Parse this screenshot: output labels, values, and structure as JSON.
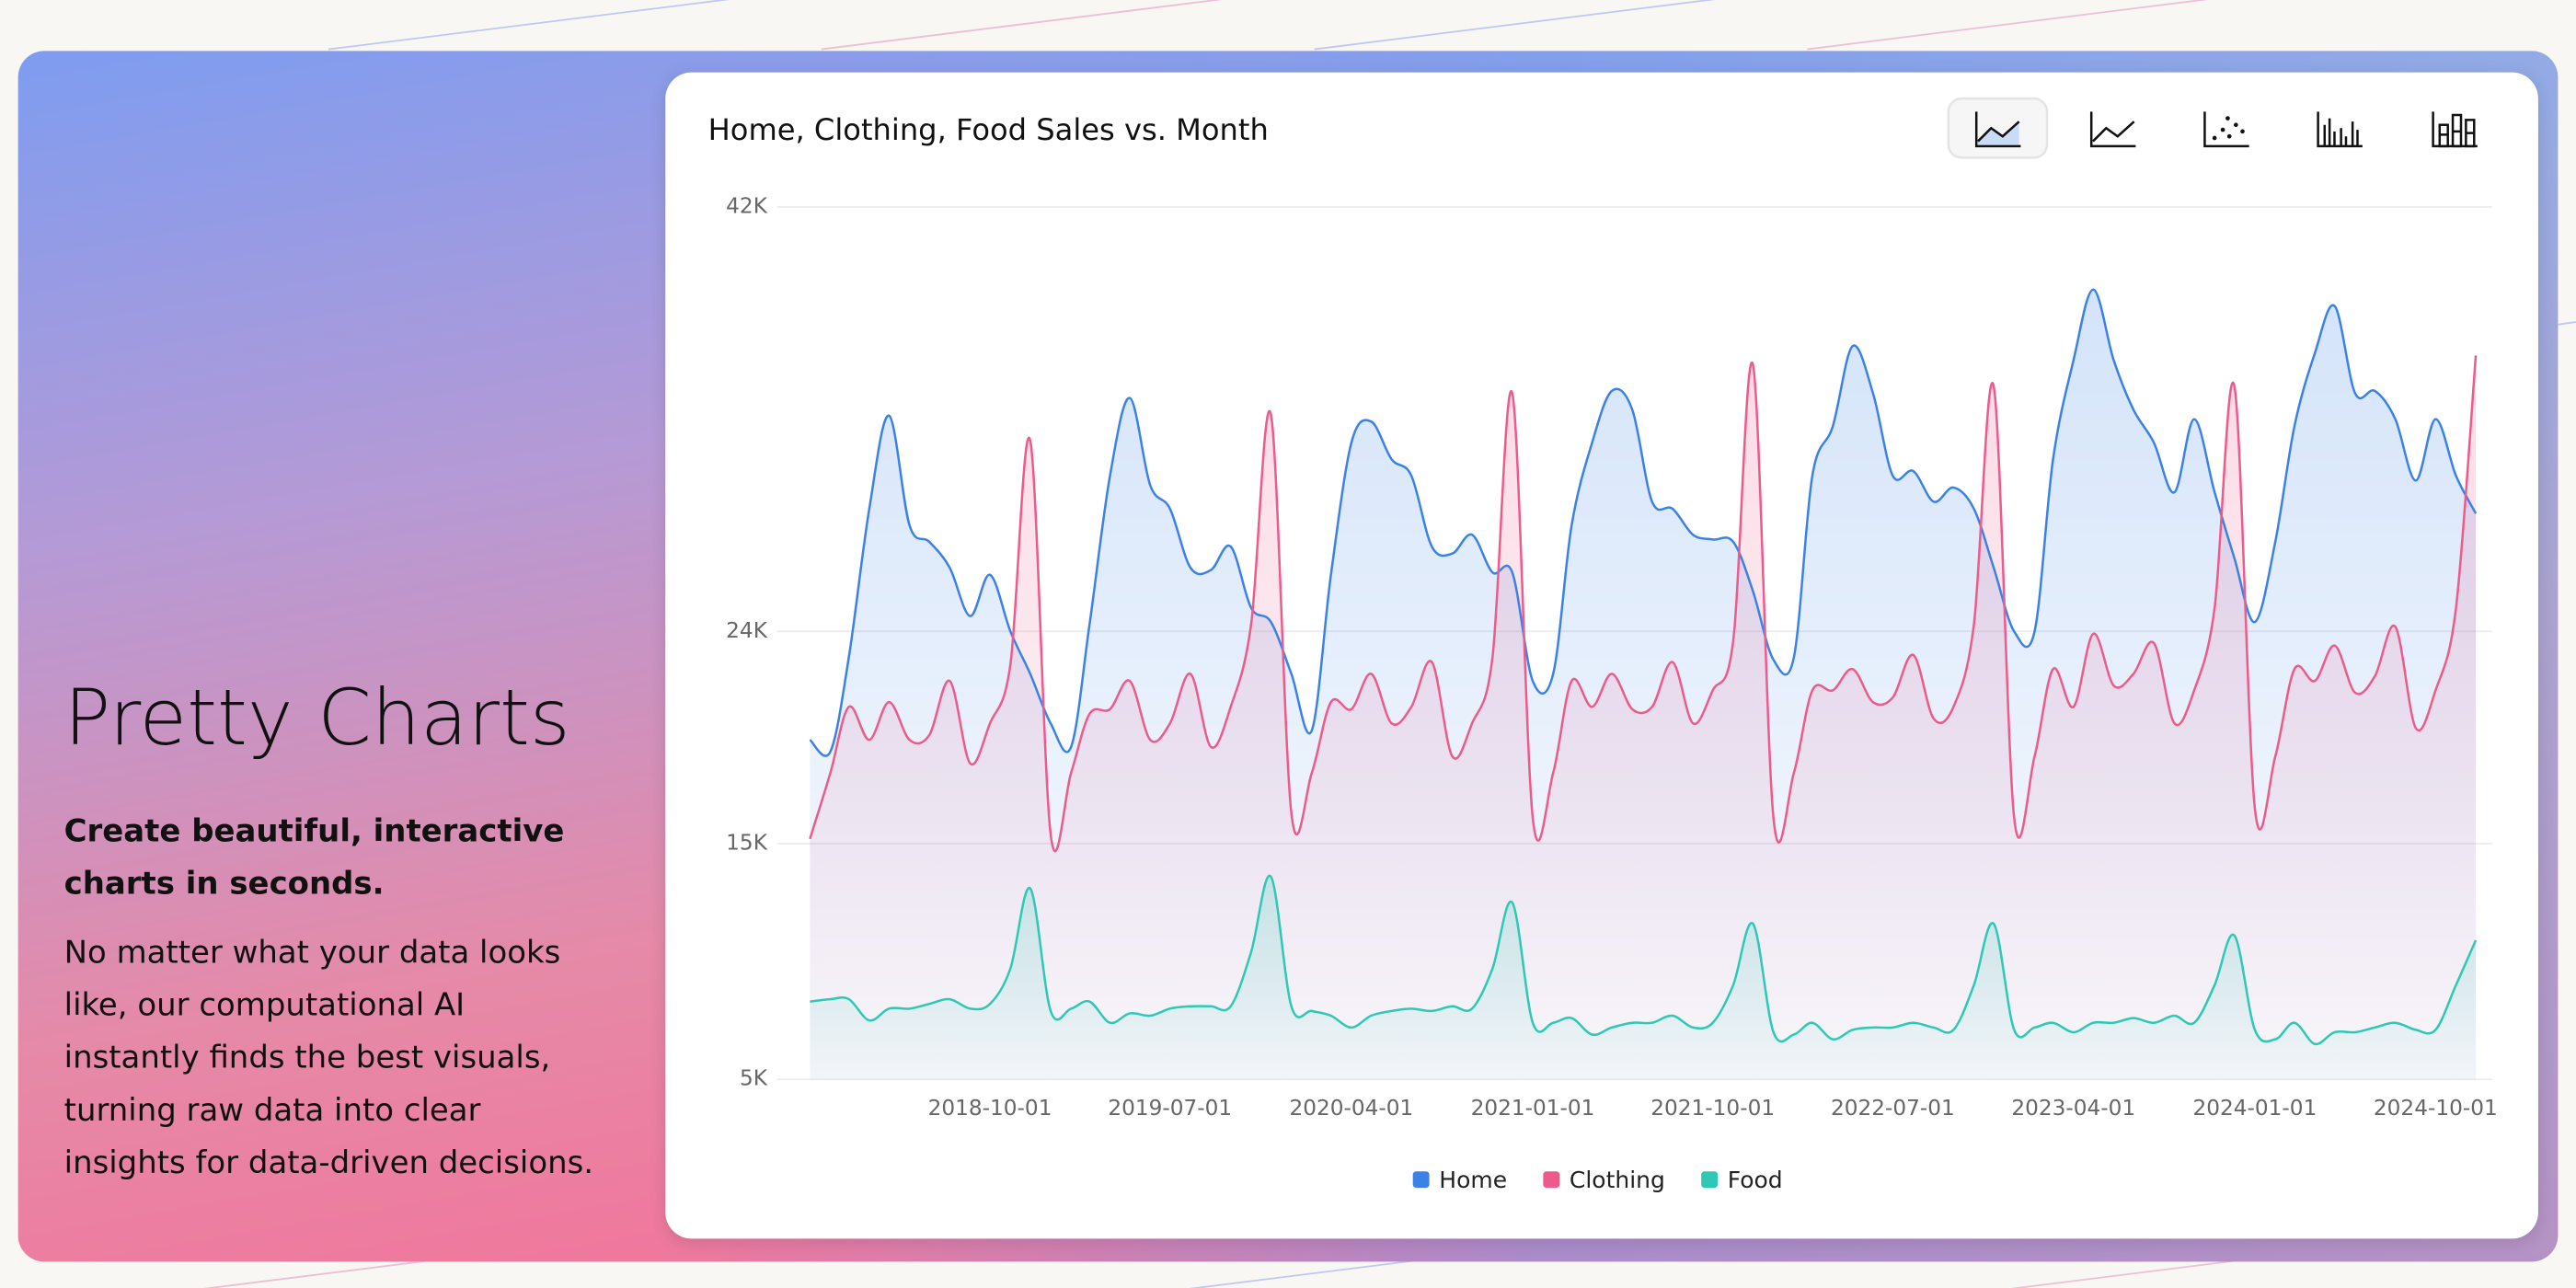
{
  "hero": {
    "title": "Pretty Charts",
    "subtitle": "Create beautiful, interactive charts in seconds.",
    "body": "No matter what your data looks like, our computational AI instantly finds the best visuals, turning raw data into clear insights for data-driven decisions."
  },
  "chart_data": {
    "type": "area",
    "title": "Home, Clothing, Food Sales vs. Month",
    "x": [
      "2018-01-01",
      "2018-02-01",
      "2018-03-01",
      "2018-04-01",
      "2018-05-01",
      "2018-06-01",
      "2018-07-01",
      "2018-08-01",
      "2018-09-01",
      "2018-10-01",
      "2018-11-01",
      "2018-12-01",
      "2019-01-01",
      "2019-02-01",
      "2019-03-01",
      "2019-04-01",
      "2019-05-01",
      "2019-06-01",
      "2019-07-01",
      "2019-08-01",
      "2019-09-01",
      "2019-10-01",
      "2019-11-01",
      "2019-12-01",
      "2020-01-01",
      "2020-02-01",
      "2020-03-01",
      "2020-04-01",
      "2020-05-01",
      "2020-06-01",
      "2020-07-01",
      "2020-08-01",
      "2020-09-01",
      "2020-10-01",
      "2020-11-01",
      "2020-12-01",
      "2021-01-01",
      "2021-02-01",
      "2021-03-01",
      "2021-04-01",
      "2021-05-01",
      "2021-06-01",
      "2021-07-01",
      "2021-08-01",
      "2021-09-01",
      "2021-10-01",
      "2021-11-01",
      "2021-12-01",
      "2022-01-01",
      "2022-02-01",
      "2022-03-01",
      "2022-04-01",
      "2022-05-01",
      "2022-06-01",
      "2022-07-01",
      "2022-08-01",
      "2022-09-01",
      "2022-10-01",
      "2022-11-01",
      "2022-12-01",
      "2023-01-01",
      "2023-02-01",
      "2023-03-01",
      "2023-04-01",
      "2023-05-01",
      "2023-06-01",
      "2023-07-01",
      "2023-08-01",
      "2023-09-01",
      "2023-10-01",
      "2023-11-01",
      "2023-12-01",
      "2024-01-01",
      "2024-02-01",
      "2024-03-01",
      "2024-04-01",
      "2024-05-01",
      "2024-06-01",
      "2024-07-01",
      "2024-08-01",
      "2024-09-01",
      "2024-10-01",
      "2024-11-01",
      "2024-12-01"
    ],
    "xlim": [
      "2018-01-01",
      "2024-12-01"
    ],
    "xticks": [
      "2018-10-01",
      "2019-07-01",
      "2020-04-01",
      "2021-01-01",
      "2021-10-01",
      "2022-07-01",
      "2023-04-01",
      "2024-01-01",
      "2024-10-01"
    ],
    "ylim": [
      5000,
      42000
    ],
    "yticks": [
      {
        "value": 5000,
        "label": "5K"
      },
      {
        "value": 15000,
        "label": "15K"
      },
      {
        "value": 24000,
        "label": "24K"
      },
      {
        "value": 42000,
        "label": "42K"
      }
    ],
    "grid": true,
    "legend": "bottom",
    "series": [
      {
        "name": "Home",
        "color": "#3b82e6",
        "values": [
          19400,
          18900,
          22900,
          29200,
          33150,
          28500,
          27800,
          26700,
          24650,
          26400,
          24000,
          22200,
          20100,
          19100,
          24300,
          30600,
          33900,
          30200,
          29200,
          26700,
          26600,
          27600,
          25000,
          24400,
          22200,
          19800,
          26400,
          32000,
          32900,
          31300,
          30600,
          27600,
          27300,
          28100,
          26500,
          26500,
          21900,
          22200,
          28500,
          32000,
          34200,
          33400,
          29500,
          29200,
          28100,
          27900,
          27800,
          25700,
          22800,
          22900,
          30600,
          32700,
          36100,
          34100,
          30600,
          30800,
          29500,
          30100,
          29200,
          26700,
          24000,
          24000,
          31300,
          35500,
          38500,
          35500,
          33400,
          32000,
          29900,
          33000,
          29900,
          27100,
          24400,
          27800,
          32700,
          35800,
          37800,
          34100,
          34200,
          33000,
          30400,
          33000,
          30600,
          29000
        ]
      },
      {
        "name": "Clothing",
        "color": "#ec5b8c",
        "values": [
          15200,
          18000,
          20800,
          19400,
          21000,
          19400,
          19600,
          21900,
          18400,
          20100,
          22600,
          32100,
          15400,
          18000,
          20500,
          20700,
          21900,
          19400,
          20100,
          22200,
          19100,
          20800,
          24300,
          33200,
          16300,
          18000,
          21000,
          20700,
          22200,
          20100,
          20800,
          22700,
          18700,
          20100,
          22900,
          34100,
          16100,
          18000,
          21900,
          20800,
          22200,
          20700,
          20800,
          22700,
          20100,
          21500,
          23600,
          35300,
          16100,
          18000,
          21500,
          21500,
          22400,
          21000,
          21200,
          23000,
          20300,
          20800,
          24300,
          34400,
          16100,
          18700,
          22400,
          20800,
          23900,
          21700,
          22200,
          23500,
          20100,
          21500,
          25000,
          34400,
          16500,
          18700,
          22400,
          21900,
          23400,
          21400,
          22100,
          24200,
          19900,
          21500,
          25000,
          35700
        ]
      },
      {
        "name": "Food",
        "color": "#2dc9b5",
        "values": [
          8300,
          8400,
          8400,
          7500,
          8000,
          8000,
          8200,
          8400,
          8000,
          8200,
          9700,
          13100,
          7900,
          8000,
          8300,
          7400,
          7800,
          7700,
          8000,
          8100,
          8100,
          8100,
          10400,
          13600,
          8100,
          7900,
          7700,
          7200,
          7700,
          7900,
          8000,
          7900,
          8100,
          8000,
          9700,
          12500,
          7400,
          7400,
          7600,
          6900,
          7200,
          7400,
          7400,
          7700,
          7200,
          7400,
          9000,
          11600,
          7000,
          6900,
          7400,
          6700,
          7100,
          7200,
          7200,
          7400,
          7200,
          7100,
          9000,
          11600,
          7100,
          7200,
          7400,
          7000,
          7400,
          7400,
          7600,
          7400,
          7700,
          7400,
          9000,
          11100,
          7100,
          6700,
          7400,
          6500,
          7000,
          7000,
          7200,
          7400,
          7100,
          7100,
          9000,
          10900
        ]
      }
    ]
  }
}
